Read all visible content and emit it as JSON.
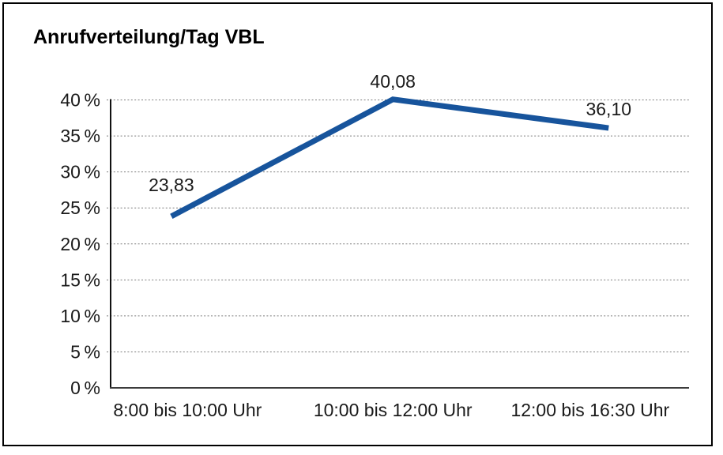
{
  "chart_data": {
    "type": "line",
    "title": "Anrufverteilung/Tag VBL",
    "categories": [
      "8:00 bis 10:00 Uhr",
      "10:00 bis 12:00 Uhr",
      "12:00 bis 16:30 Uhr"
    ],
    "values": [
      23.83,
      40.08,
      36.1
    ],
    "data_labels": [
      "23,83",
      "40,08",
      "36,10"
    ],
    "y_ticks": [
      0,
      5,
      10,
      15,
      20,
      25,
      30,
      35,
      40
    ],
    "y_tick_labels": [
      "0 %",
      "5 %",
      "10 %",
      "15 %",
      "20 %",
      "25 %",
      "30 %",
      "35 %",
      "40 %"
    ],
    "ylim": [
      0,
      40
    ],
    "xlabel": "",
    "ylabel": "",
    "grid": "horizontal-dotted",
    "legend": "none",
    "line_color": "#17549C",
    "grid_color": "#7d7d7d"
  }
}
